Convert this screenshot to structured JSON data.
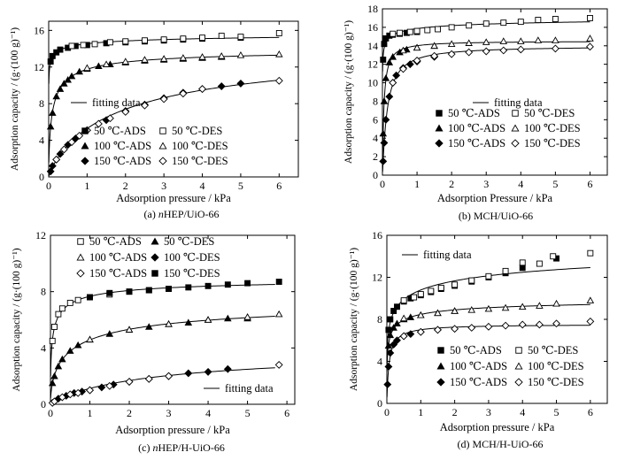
{
  "figure": {
    "panels": [
      {
        "caption": "(a) nHEP/UiO-66",
        "caption_italic_prefix": "n",
        "caption_rest": "HEP/UiO-66"
      },
      {
        "caption": "(b) MCH/UiO-66",
        "caption_italic_prefix": "",
        "caption_rest": "MCH/UiO-66"
      },
      {
        "caption": "(c) nHEP/H-UiO-66",
        "caption_italic_prefix": "n",
        "caption_rest": "HEP/H-UiO-66"
      },
      {
        "caption": "(d) MCH/H-UiO-66",
        "caption_italic_prefix": "",
        "caption_rest": "MCH/H-UiO-66"
      }
    ]
  },
  "chart_data": [
    {
      "type": "scatter",
      "panel_label": "(a)",
      "title": "nHEP/UiO-66",
      "xlabel": "Adsorption pressure / kPa",
      "ylabel": "Adsorption capacity / (g·(100 g)⁻¹)",
      "xlim": [
        0,
        6.5
      ],
      "ylim": [
        0,
        17
      ],
      "xticks": [
        0,
        1,
        2,
        3,
        4,
        5,
        6
      ],
      "yticks": [
        0,
        4,
        8,
        12,
        16
      ],
      "grid": false,
      "legend_entries": [
        "50 ℃-ADS",
        "50 ℃-DES",
        "100 ℃-ADS",
        "100 ℃-DES",
        "150 ℃-ADS",
        "150 ℃-DES"
      ],
      "fitting_label": "fitting data",
      "series": [
        {
          "name": "50 ℃-ADS",
          "marker": "square-filled",
          "x": [
            0.05,
            0.1,
            0.2,
            0.3,
            0.5,
            0.7,
            1.0,
            1.5,
            2.0,
            2.5,
            3.0,
            3.5,
            4.0,
            5.0
          ],
          "y": [
            12.6,
            13.2,
            13.6,
            13.9,
            14.1,
            14.3,
            14.4,
            14.6,
            14.7,
            14.8,
            14.9,
            15.0,
            15.1,
            15.2
          ]
        },
        {
          "name": "50 ℃-DES",
          "marker": "square-open",
          "x": [
            0.6,
            0.9,
            1.2,
            1.6,
            2.0,
            2.5,
            3.0,
            3.5,
            4.0,
            4.5,
            5.0,
            6.0
          ],
          "y": [
            14.3,
            14.4,
            14.5,
            14.7,
            14.8,
            14.9,
            15.0,
            15.1,
            15.2,
            15.4,
            15.3,
            15.7
          ]
        },
        {
          "name": "100 ℃-ADS",
          "marker": "triangle-filled",
          "x": [
            0.05,
            0.1,
            0.2,
            0.3,
            0.4,
            0.5,
            0.6,
            0.8,
            1.0,
            1.3,
            1.6,
            2.0,
            2.5,
            3.0,
            3.5,
            4.0,
            4.5
          ],
          "y": [
            5.5,
            7.0,
            8.8,
            9.6,
            10.2,
            10.6,
            11.0,
            11.5,
            11.8,
            12.1,
            12.3,
            12.5,
            12.7,
            12.8,
            12.9,
            13.0,
            13.1
          ]
        },
        {
          "name": "100 ℃-DES",
          "marker": "triangle-open",
          "x": [
            1.0,
            1.5,
            2.0,
            2.5,
            3.0,
            3.5,
            4.0,
            4.5,
            5.0,
            6.0
          ],
          "y": [
            11.9,
            12.3,
            12.6,
            12.8,
            12.9,
            13.0,
            13.1,
            13.2,
            13.3,
            13.4
          ]
        },
        {
          "name": "150 ℃-ADS",
          "marker": "diamond-filled",
          "x": [
            0.05,
            0.1,
            0.2,
            0.3,
            0.5,
            0.7,
            1.0,
            1.5,
            2.0,
            2.5,
            3.0,
            3.5,
            4.0,
            4.5,
            5.0
          ],
          "y": [
            0.6,
            1.2,
            1.9,
            2.5,
            3.5,
            4.2,
            5.1,
            6.2,
            7.2,
            7.9,
            8.6,
            9.2,
            9.6,
            9.9,
            10.2
          ]
        },
        {
          "name": "150 ℃-DES",
          "marker": "diamond-open",
          "x": [
            0.2,
            0.4,
            0.6,
            0.8,
            1.0,
            1.3,
            1.6,
            2.0,
            2.5,
            3.0,
            3.5,
            4.0,
            6.0
          ],
          "y": [
            1.9,
            3.0,
            3.8,
            4.5,
            5.1,
            5.8,
            6.4,
            7.1,
            7.8,
            8.5,
            9.1,
            9.6,
            10.5
          ]
        }
      ]
    },
    {
      "type": "scatter",
      "panel_label": "(b)",
      "title": "MCH/UiO-66",
      "xlabel": "Adsorption Pressure / kPa",
      "ylabel": "Adsorption capacity / (g·(100 g)⁻¹)",
      "xlim": [
        0,
        6.5
      ],
      "ylim": [
        0,
        18
      ],
      "xticks": [
        0,
        1,
        2,
        3,
        4,
        5,
        6
      ],
      "yticks": [
        0,
        2,
        4,
        6,
        8,
        10,
        12,
        14,
        16,
        18
      ],
      "grid": false,
      "legend_entries": [
        "50 ℃-ADS",
        "50 ℃-DES",
        "100 ℃-ADS",
        "100 ℃-DES",
        "150 ℃-ADS",
        "150 ℃-DES"
      ],
      "fitting_label": "fitting data",
      "series": [
        {
          "name": "50 ℃-ADS",
          "marker": "square-filled",
          "x": [
            0.02,
            0.05,
            0.1,
            0.2,
            0.3,
            0.5,
            0.7,
            1.0
          ],
          "y": [
            12.5,
            14.2,
            14.8,
            15.1,
            15.2,
            15.3,
            15.4,
            15.5
          ]
        },
        {
          "name": "50 ℃-DES",
          "marker": "square-open",
          "x": [
            0.3,
            0.5,
            0.8,
            1.0,
            1.3,
            1.6,
            2.0,
            2.5,
            3.0,
            3.5,
            4.0,
            4.5,
            5.0,
            6.0
          ],
          "y": [
            15.3,
            15.4,
            15.5,
            15.6,
            15.7,
            15.8,
            16.0,
            16.2,
            16.4,
            16.5,
            16.6,
            16.8,
            16.9,
            17.0
          ]
        },
        {
          "name": "100 ℃-ADS",
          "marker": "triangle-filled",
          "x": [
            0.02,
            0.05,
            0.1,
            0.2,
            0.3,
            0.5,
            0.7,
            1.0,
            1.5
          ],
          "y": [
            4.5,
            8.0,
            10.5,
            12.2,
            12.8,
            13.3,
            13.6,
            13.8,
            14.0
          ]
        },
        {
          "name": "100 ℃-DES",
          "marker": "triangle-open",
          "x": [
            0.6,
            1.0,
            1.5,
            2.0,
            2.5,
            3.0,
            3.5,
            4.0,
            4.5,
            5.0,
            6.0
          ],
          "y": [
            13.5,
            13.8,
            14.0,
            14.2,
            14.3,
            14.4,
            14.5,
            14.5,
            14.6,
            14.6,
            14.8
          ]
        },
        {
          "name": "150 ℃-ADS",
          "marker": "diamond-filled",
          "x": [
            0.02,
            0.05,
            0.1,
            0.2,
            0.3,
            0.4,
            0.6,
            0.8,
            1.0,
            1.5
          ],
          "y": [
            1.5,
            3.5,
            6.0,
            8.5,
            10.0,
            10.8,
            11.6,
            12.0,
            12.3,
            12.8
          ]
        },
        {
          "name": "150 ℃-DES",
          "marker": "diamond-open",
          "x": [
            0.3,
            0.6,
            1.0,
            1.5,
            2.0,
            2.5,
            3.0,
            3.5,
            4.0,
            5.0,
            6.0
          ],
          "y": [
            10.0,
            11.5,
            12.4,
            12.9,
            13.1,
            13.3,
            13.4,
            13.5,
            13.6,
            13.7,
            13.9
          ]
        }
      ]
    },
    {
      "type": "scatter",
      "panel_label": "(c)",
      "title": "nHEP/H-UiO-66",
      "xlabel": "Adsorption pressure / kPa",
      "ylabel": "Adsorption capacity / (g·(100 g)⁻¹)",
      "xlim": [
        0,
        6.2
      ],
      "ylim": [
        0,
        12
      ],
      "xticks": [
        0,
        1,
        2,
        3,
        4,
        5,
        6
      ],
      "yticks": [
        0,
        4,
        8,
        12
      ],
      "grid": false,
      "legend_entries": [
        "50 ℃-ADS",
        "50 ℃-DES",
        "100 ℃-ADS",
        "100 ℃-DES",
        "150 ℃-ADS",
        "150 ℃-DES"
      ],
      "fitting_label": "fitting data",
      "series": [
        {
          "name": "50 ℃-ADS",
          "marker": "square-open",
          "x": [
            0.05,
            0.1,
            0.2,
            0.3,
            0.5,
            0.7,
            1.0,
            1.5,
            2.0,
            2.5,
            3.0
          ],
          "y": [
            4.5,
            5.5,
            6.4,
            6.8,
            7.2,
            7.4,
            7.6,
            7.8,
            8.0,
            8.1,
            8.2
          ]
        },
        {
          "name": "50 ℃-DES",
          "marker": "triangle-filled",
          "x": [
            0.05,
            0.1,
            0.2,
            0.3,
            0.5,
            0.7,
            1.0,
            1.5,
            2.0,
            2.5,
            3.0,
            3.5,
            4.0,
            4.5,
            5.0
          ],
          "y": [
            1.5,
            2.0,
            2.7,
            3.2,
            3.8,
            4.2,
            4.6,
            5.0,
            5.3,
            5.5,
            5.7,
            5.8,
            6.0,
            6.1,
            6.1
          ]
        },
        {
          "name": "100 ℃-ADS",
          "marker": "triangle-open",
          "x": [
            1.0,
            2.0,
            3.0,
            4.0,
            5.0,
            5.8
          ],
          "y": [
            4.6,
            5.3,
            5.7,
            6.0,
            6.2,
            6.4
          ]
        },
        {
          "name": "100 ℃-DES",
          "marker": "diamond-filled",
          "x": [
            0.2,
            0.4,
            0.6,
            0.8,
            1.0,
            1.3,
            1.6,
            2.0,
            2.5,
            3.0,
            3.5,
            4.0,
            4.5
          ],
          "y": [
            0.4,
            0.6,
            0.8,
            0.9,
            1.0,
            1.2,
            1.4,
            1.6,
            1.8,
            2.0,
            2.2,
            2.3,
            2.5
          ]
        },
        {
          "name": "150 ℃-ADS",
          "marker": "diamond-open",
          "x": [
            0.05,
            0.1,
            0.3,
            0.5,
            0.7,
            1.0,
            1.5,
            2.0,
            2.5,
            3.0,
            5.8
          ],
          "y": [
            0.1,
            0.2,
            0.5,
            0.7,
            0.8,
            1.0,
            1.3,
            1.6,
            1.8,
            2.0,
            2.8
          ]
        },
        {
          "name": "150 ℃-DES",
          "marker": "square-filled",
          "x": [
            1.0,
            1.5,
            2.0,
            2.5,
            3.0,
            3.5,
            4.0,
            4.5,
            5.0,
            5.8
          ],
          "y": [
            7.6,
            7.9,
            8.0,
            8.1,
            8.2,
            8.3,
            8.4,
            8.5,
            8.6,
            8.7
          ]
        }
      ]
    },
    {
      "type": "scatter",
      "panel_label": "(d)",
      "title": "MCH/H-UiO-66",
      "xlabel": "Adsorption pressure / kPa",
      "ylabel": "Adsorption capacity / (g·(100 g)⁻¹)",
      "xlim": [
        0,
        6.5
      ],
      "ylim": [
        0,
        16
      ],
      "xticks": [
        0,
        1,
        2,
        3,
        4,
        5,
        6
      ],
      "yticks": [
        0,
        4,
        8,
        12,
        16
      ],
      "grid": false,
      "legend_entries": [
        "50 ℃-ADS",
        "50 ℃-DES",
        "100 ℃-ADS",
        "100 ℃-DES",
        "150 ℃-ADS",
        "150 ℃-DES"
      ],
      "fitting_label": "fitting data",
      "series": [
        {
          "name": "50 ℃-ADS",
          "marker": "square-filled",
          "x": [
            0.05,
            0.1,
            0.2,
            0.3,
            0.5,
            0.7,
            1.0,
            1.3,
            1.6,
            2.0,
            2.5,
            3.0,
            3.5,
            4.0,
            5.0
          ],
          "y": [
            7.0,
            8.0,
            8.8,
            9.2,
            9.7,
            10.0,
            10.3,
            10.6,
            10.9,
            11.2,
            11.6,
            12.0,
            12.4,
            12.9,
            13.8
          ]
        },
        {
          "name": "50 ℃-DES",
          "marker": "square-open",
          "x": [
            0.5,
            0.8,
            1.0,
            1.3,
            1.6,
            2.0,
            2.5,
            3.0,
            3.5,
            4.0,
            4.5,
            4.9,
            6.0
          ],
          "y": [
            9.8,
            10.1,
            10.4,
            10.7,
            11.0,
            11.3,
            11.7,
            12.1,
            12.6,
            13.4,
            13.3,
            14.0,
            14.3
          ]
        },
        {
          "name": "100 ℃-ADS",
          "marker": "triangle-filled",
          "x": [
            0.05,
            0.1,
            0.2,
            0.3,
            0.5,
            0.7,
            1.0,
            1.5,
            2.0
          ],
          "y": [
            5.5,
            6.5,
            7.2,
            7.6,
            8.0,
            8.2,
            8.4,
            8.6,
            8.8
          ]
        },
        {
          "name": "100 ℃-DES",
          "marker": "triangle-open",
          "x": [
            0.5,
            1.0,
            1.5,
            2.0,
            2.5,
            3.0,
            3.5,
            4.0,
            4.5,
            5.0,
            6.0
          ],
          "y": [
            8.1,
            8.4,
            8.6,
            8.8,
            8.9,
            9.0,
            9.1,
            9.2,
            9.3,
            9.5,
            9.8
          ]
        },
        {
          "name": "150 ℃-ADS",
          "marker": "diamond-filled",
          "x": [
            0.02,
            0.05,
            0.1,
            0.2,
            0.3,
            0.5,
            0.7,
            1.0,
            1.5
          ],
          "y": [
            1.8,
            3.5,
            4.8,
            5.6,
            6.0,
            6.4,
            6.6,
            6.8,
            7.0
          ]
        },
        {
          "name": "150 ℃-DES",
          "marker": "diamond-open",
          "x": [
            0.5,
            1.0,
            1.5,
            2.0,
            2.5,
            3.0,
            3.5,
            4.0,
            4.5,
            5.0,
            6.0
          ],
          "y": [
            6.4,
            6.8,
            7.0,
            7.1,
            7.2,
            7.3,
            7.4,
            7.5,
            7.5,
            7.6,
            7.8
          ]
        }
      ]
    }
  ]
}
